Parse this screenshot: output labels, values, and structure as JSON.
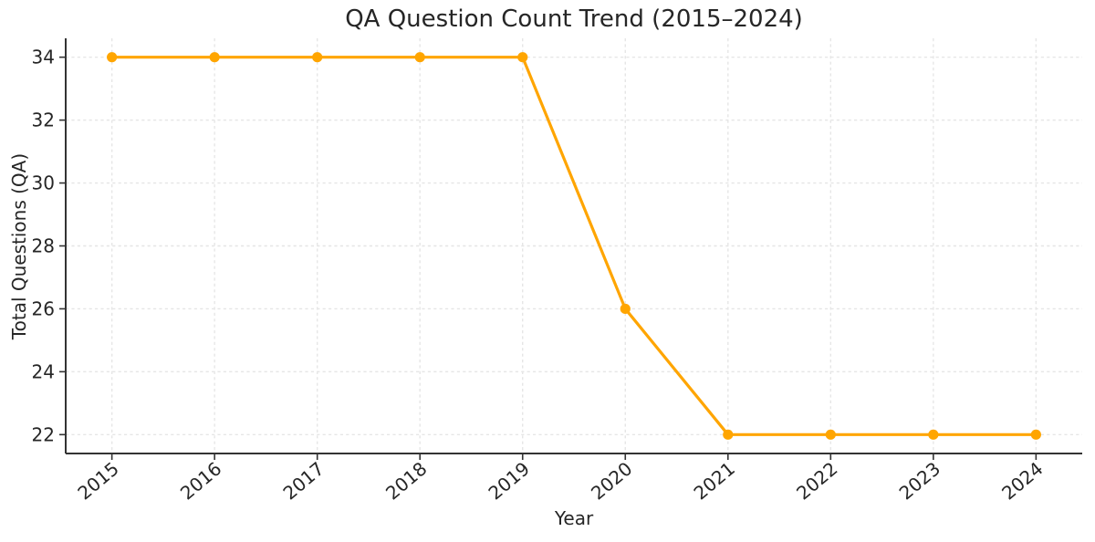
{
  "chart_data": {
    "type": "line",
    "title": "QA Question Count Trend (2015–2024)",
    "xlabel": "Year",
    "ylabel": "Total Questions (QA)",
    "categories": [
      2015,
      2016,
      2017,
      2018,
      2019,
      2020,
      2021,
      2022,
      2023,
      2024
    ],
    "values": [
      34,
      34,
      34,
      34,
      34,
      26,
      22,
      22,
      22,
      22
    ],
    "xtick_labels": [
      "2015",
      "2016",
      "2017",
      "2018",
      "2019",
      "2020",
      "2021",
      "2022",
      "2023",
      "2024"
    ],
    "ytick_labels": [
      "22",
      "24",
      "26",
      "28",
      "30",
      "32",
      "34"
    ],
    "yticks": [
      22,
      24,
      26,
      28,
      30,
      32,
      34
    ],
    "xlim": [
      2014.55,
      2024.45
    ],
    "ylim": [
      21.4,
      34.6
    ],
    "grid": true,
    "grid_style": "dashed",
    "legend_position": "none",
    "line_color": "#FFA500",
    "marker": "circle",
    "x_tick_rotation_deg": 40
  },
  "colors": {
    "background": "#FFFFFF",
    "text": "#262626",
    "axis": "#333333",
    "grid": "#E6E6E6",
    "accent_line": "#FFA500"
  }
}
